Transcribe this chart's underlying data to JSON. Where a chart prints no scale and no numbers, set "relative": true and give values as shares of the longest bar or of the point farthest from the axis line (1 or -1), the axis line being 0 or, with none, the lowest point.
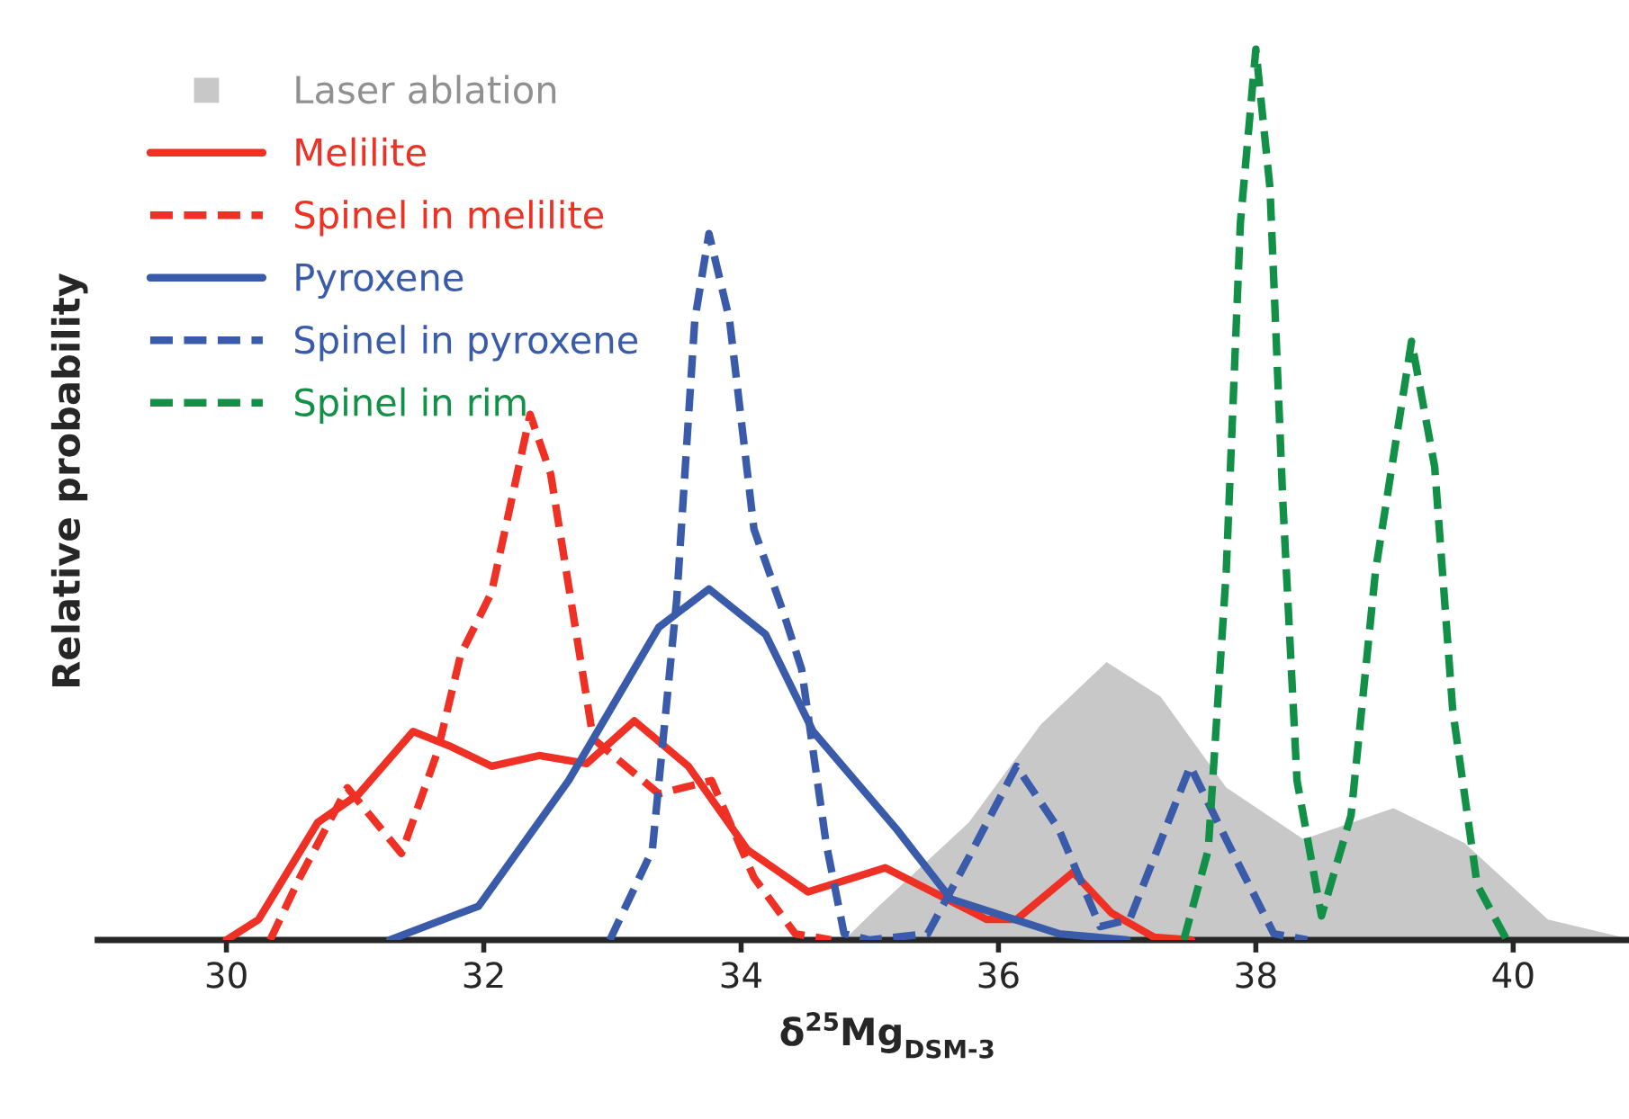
{
  "chart_data": {
    "type": "line",
    "relative": true,
    "xlabel": "δ$^{25}$Mg$_{DSM-3}$",
    "ylabel": "Relative probability",
    "xlim": [
      29,
      40.9
    ],
    "xticks": [
      30,
      32,
      34,
      36,
      38,
      40
    ],
    "grid": false,
    "legend": "top left",
    "marker": "none",
    "series": [
      {
        "name": "Laser ablation",
        "type": "area",
        "color": "#c8c8c8",
        "x": [
          34.8,
          35.07,
          35.77,
          36.33,
          36.84,
          37.26,
          37.77,
          38.37,
          39.07,
          39.62,
          40.27,
          40.85
        ],
        "values": [
          0,
          0.038,
          0.132,
          0.242,
          0.312,
          0.273,
          0.171,
          0.113,
          0.148,
          0.109,
          0.023,
          0.003
        ]
      },
      {
        "name": "Melilite",
        "type": "line",
        "line_style": "solid",
        "color": "#ee3124",
        "x": [
          30.0,
          30.25,
          30.71,
          31.03,
          31.45,
          31.73,
          32.06,
          32.43,
          32.8,
          33.17,
          33.59,
          34.05,
          34.52,
          35.12,
          35.91,
          36.14,
          36.58,
          36.88,
          37.21,
          37.5
        ],
        "values": [
          0,
          0.023,
          0.132,
          0.164,
          0.234,
          0.218,
          0.195,
          0.207,
          0.198,
          0.246,
          0.195,
          0.101,
          0.054,
          0.081,
          0.023,
          0.023,
          0.076,
          0.03,
          0.003,
          0
        ]
      },
      {
        "name": "Spinel in melilite",
        "type": "line",
        "line_style": "dashed",
        "color": "#ee3124",
        "x": [
          30.34,
          30.57,
          30.94,
          31.36,
          31.64,
          31.82,
          32.06,
          32.36,
          32.52,
          32.85,
          33.36,
          33.77,
          34.1,
          34.42,
          34.7
        ],
        "values": [
          0,
          0.07,
          0.171,
          0.097,
          0.211,
          0.32,
          0.39,
          0.59,
          0.523,
          0.226,
          0.164,
          0.179,
          0.07,
          0.007,
          0
        ]
      },
      {
        "name": "Pyroxene",
        "type": "line",
        "line_style": "solid",
        "color": "#3a5ba9",
        "x": [
          31.27,
          31.96,
          32.66,
          33.36,
          33.75,
          34.19,
          34.56,
          35.21,
          35.63,
          36.47,
          37.0
        ],
        "values": [
          0,
          0.038,
          0.179,
          0.351,
          0.394,
          0.343,
          0.234,
          0.124,
          0.046,
          0.007,
          0
        ]
      },
      {
        "name": "Spinel in pyroxene",
        "type": "line",
        "line_style": "dashed",
        "color": "#3a5ba9",
        "x": [
          32.98,
          33.31,
          33.5,
          33.64,
          33.75,
          33.91,
          34.1,
          34.33,
          34.47,
          34.66,
          34.8,
          35.0,
          35.45,
          35.77,
          36.14,
          36.47,
          36.79,
          37.02,
          37.49,
          37.81,
          38.14,
          38.4
        ],
        "values": [
          0,
          0.101,
          0.383,
          0.696,
          0.793,
          0.696,
          0.461,
          0.367,
          0.304,
          0.109,
          0.007,
          0,
          0.007,
          0.093,
          0.195,
          0.124,
          0.015,
          0.023,
          0.195,
          0.101,
          0.007,
          0
        ]
      },
      {
        "name": "Spinel in rim",
        "type": "line",
        "line_style": "dashed",
        "color": "#139048",
        "x": [
          37.44,
          37.63,
          37.77,
          37.88,
          38.0,
          38.11,
          38.21,
          38.32,
          38.51,
          38.74,
          38.93,
          39.21,
          39.39,
          39.53,
          39.72,
          39.95
        ],
        "values": [
          0,
          0.101,
          0.414,
          0.805,
          1.0,
          0.844,
          0.492,
          0.179,
          0.027,
          0.14,
          0.414,
          0.672,
          0.531,
          0.258,
          0.062,
          0
        ]
      }
    ]
  }
}
